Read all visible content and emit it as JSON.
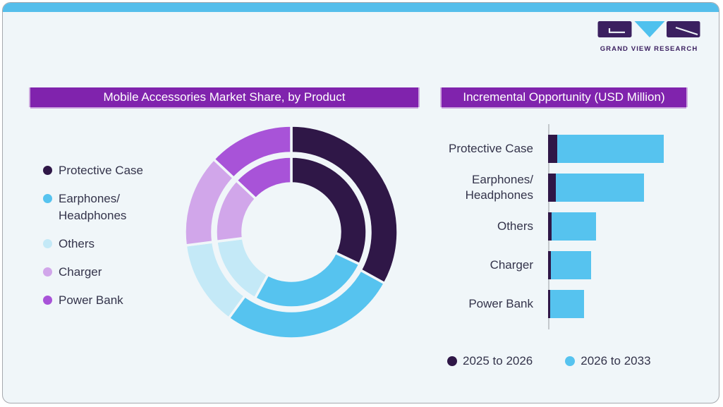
{
  "brand": {
    "logo_text": "GRAND VIEW RESEARCH",
    "logo_purple": "#3B2060",
    "logo_blue": "#4FC1EE"
  },
  "theme": {
    "card_background": "#F0F6F9",
    "top_accent_bar": "#55BEEB",
    "title_bar_purple": "#8023AD",
    "title_bar_edge": "#CDA9DF",
    "text_color": "#34344B",
    "axis_color": "#c3c8cc"
  },
  "chart_data": [
    {
      "type": "pie",
      "variant": "double-ring-donut",
      "title": "Mobile Accessories Market Share, by Product",
      "categories": [
        "Protective Case",
        "Earphones/\nHeadphones",
        "Others",
        "Charger",
        "Power Bank"
      ],
      "colors": [
        "#2F1747",
        "#56C3EF",
        "#C4E9F7",
        "#D1A6EA",
        "#A853D8"
      ],
      "start_angle_deg": 0,
      "direction": "clockwise",
      "rings": [
        {
          "name": "outer",
          "values_pct": [
            33,
            27,
            13,
            14,
            13
          ]
        },
        {
          "name": "inner",
          "values_pct": [
            32,
            26,
            15,
            14,
            13
          ]
        }
      ],
      "value_labels_shown": false,
      "legend_position": "left"
    },
    {
      "type": "bar",
      "orientation": "horizontal",
      "title": "Incremental Opportunity (USD Million)",
      "categories": [
        "Protective Case",
        "Earphones/\nHeadphones",
        "Others",
        "Charger",
        "Power Bank"
      ],
      "series": [
        {
          "name": "2025 to 2026",
          "color": "#2F1747",
          "values_rel": [
            8,
            7,
            3,
            2.5,
            2
          ]
        },
        {
          "name": "2026 to 2033",
          "color": "#56C3EF",
          "values_rel": [
            92,
            76,
            38.5,
            35,
            29
          ]
        }
      ],
      "stacked": true,
      "value_axis_visible": false,
      "value_scale": "relative, longest total bar = 100",
      "legend_position": "bottom"
    }
  ]
}
